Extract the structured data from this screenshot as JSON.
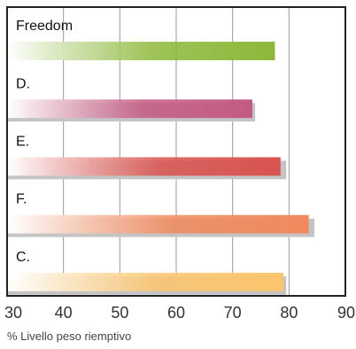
{
  "chart_data": {
    "type": "bar",
    "orientation": "horizontal",
    "categories": [
      "Freedom",
      "D.",
      "E.",
      "F.",
      "C."
    ],
    "values": [
      77.5,
      73.5,
      78.5,
      83.5,
      79
    ],
    "shadow_values": [
      null,
      74,
      79.5,
      84.5,
      79.5
    ],
    "bar_colors": [
      "#8cb83a",
      "#c45a82",
      "#d9534f",
      "#f08a5d",
      "#fcc56d"
    ],
    "xlim": [
      30,
      90
    ],
    "xticks": [
      30,
      40,
      50,
      60,
      70,
      80,
      90
    ],
    "xlabel": "% Livello peso riemptivo",
    "grid": true,
    "legend": "none"
  }
}
